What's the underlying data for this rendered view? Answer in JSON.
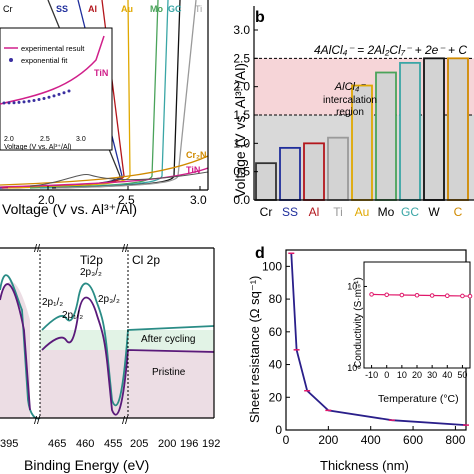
{
  "colors": {
    "cr": "#333333",
    "ss": "#1f2e9c",
    "al": "#b3161c",
    "ti": "#9a9a9a",
    "au": "#e0a800",
    "mo": "#4aa35a",
    "gc": "#3aa6a6",
    "w": "#111111",
    "tin": "#d01f8a",
    "cr2n": "#d08a00",
    "cycled": "#2a8c86",
    "pristine": "#5a1a7a",
    "fit": "#3a2fa0",
    "sheet": "#2a1f8a",
    "sheet_marker": "#e0186a",
    "band_red": "#f6d5d8",
    "band_grey": "#d9d9d9",
    "bar_grey": "#d3d3d3"
  },
  "panel_a": {
    "xlabel": "Voltage (V vs. Al³⁺/Al)",
    "xticks": [
      "2.0",
      "2.5",
      "3.0"
    ],
    "curve_labels": {
      "cr": "Cr",
      "ss": "SS",
      "al": "Al",
      "au": "Au",
      "mo": "Mo",
      "gc": "GC",
      "ti": "Ti",
      "cr2n": "Cr₂N",
      "tin": "TiN"
    },
    "inset": {
      "legend": [
        "experimental result",
        "exponential fit"
      ],
      "tin_label": "TiN",
      "xticks": [
        "2.0",
        "2.5",
        "3.0"
      ],
      "xlabel": "Voltage (V vs. Al³⁺/Al)"
    }
  },
  "panel_b": {
    "letter": "b",
    "ylabel": "Voltage (V vs. Al³⁺/Al)",
    "yticks": [
      "0.0",
      "0.5",
      "1.0",
      "1.5",
      "2.0",
      "2.5",
      "3.0"
    ],
    "equation": "4AlCl₄⁻ = 2Al₂Cl₇⁻ + 2e⁻ + C",
    "region_species": "AlCl₄⁻",
    "region_line1": "intercalation",
    "region_line2": "region",
    "chart_data": {
      "type": "bar",
      "categories": [
        "Cr",
        "SS",
        "Al",
        "Ti",
        "Au",
        "Mo",
        "GC",
        "W",
        "C"
      ],
      "values": [
        0.65,
        0.92,
        1.0,
        1.1,
        2.02,
        2.25,
        2.42,
        2.5,
        2.5
      ],
      "ylim": [
        0,
        3.0
      ],
      "bands": [
        {
          "from": 1.5,
          "to": 2.5
        },
        {
          "from": 2.5,
          "to": 3.0
        }
      ]
    }
  },
  "panel_c": {
    "xlabel": "Binding Energy (eV)",
    "xticks": [
      "395",
      "465",
      "460",
      "455",
      "205",
      "200",
      "196",
      "192"
    ],
    "section_labels": [
      "Ti2p",
      "Cl 2p"
    ],
    "peaks": [
      "2p₁/₂",
      "2p₃/₂",
      "2p₁/₂",
      "2p₃/₂"
    ],
    "curve_labels": [
      "After cycling",
      "Pristine"
    ]
  },
  "panel_d": {
    "letter": "d",
    "ylabel": "Sheet resistance (Ω sq⁻¹)",
    "xlabel": "Thickness (nm)",
    "xticks": [
      "0",
      "200",
      "400",
      "600",
      "800"
    ],
    "yticks": [
      "0",
      "20",
      "40",
      "60",
      "80",
      "100"
    ],
    "chart_data": {
      "type": "line",
      "x": [
        25,
        50,
        100,
        200,
        500,
        850
      ],
      "y": [
        108,
        49,
        24,
        12,
        6,
        3
      ],
      "xlim": [
        0,
        850
      ],
      "ylim": [
        0,
        110
      ]
    },
    "inset": {
      "ylabel": "Conductivity (S·m⁻¹)",
      "xlabel": "Temperature (°C)",
      "xticks": [
        "-10",
        "0",
        "10",
        "20",
        "30",
        "40",
        "50"
      ],
      "yticks": [
        "10⁵",
        "10⁶"
      ],
      "chart_data": {
        "type": "line",
        "x": [
          -10,
          0,
          10,
          20,
          30,
          40,
          50,
          55
        ],
        "y": [
          800000,
          790000,
          785000,
          780000,
          775000,
          770000,
          765000,
          760000
        ],
        "xlim": [
          -15,
          55
        ],
        "ylim_log": [
          5,
          6.3
        ]
      }
    }
  }
}
